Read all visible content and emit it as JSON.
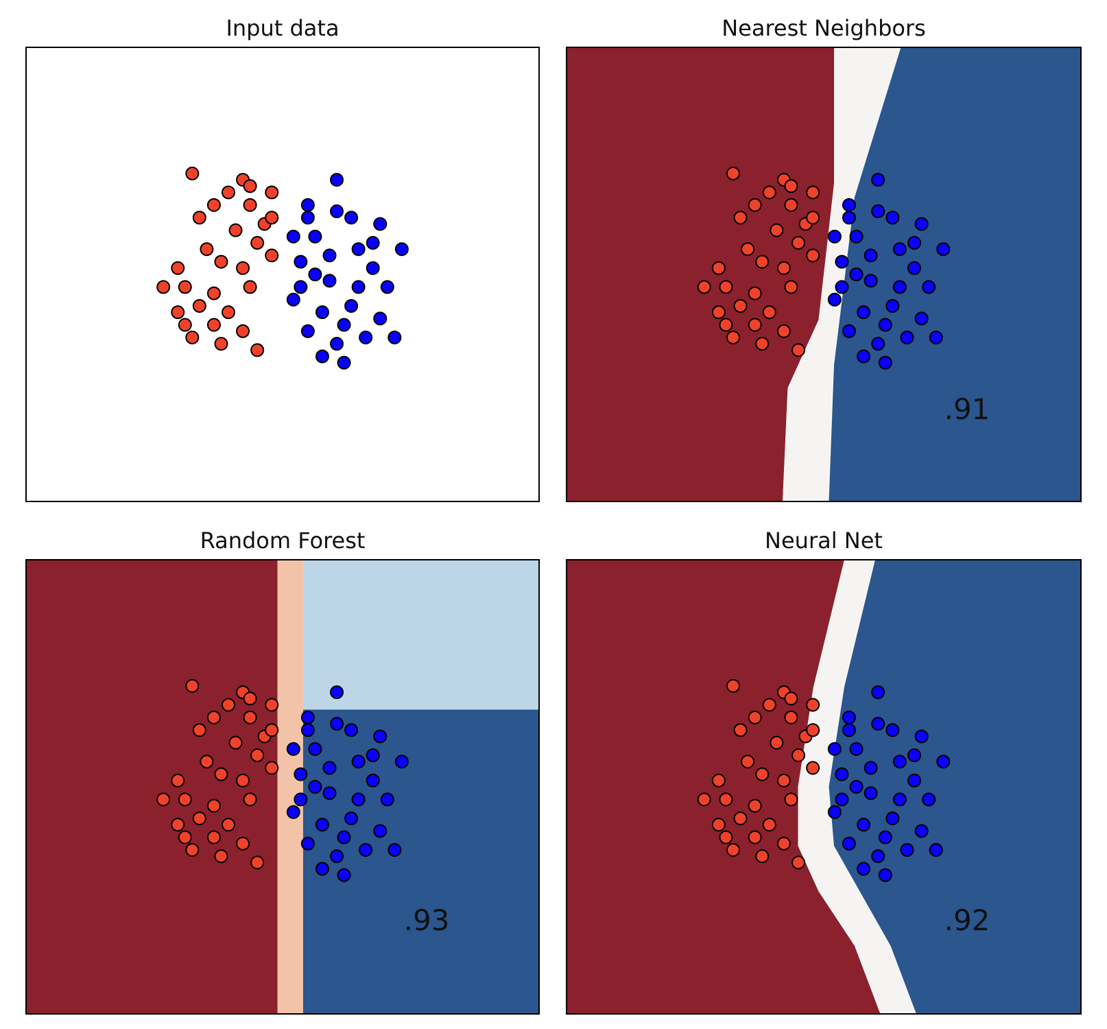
{
  "colors": {
    "class_a_point": "#f0422a",
    "class_b_point": "#0a00ff",
    "point_edge": "#000000",
    "region_scale": [
      "#8b212d",
      "#c9654f",
      "#f2c3a9",
      "#f6f4f2",
      "#bcd6e8",
      "#6299c5",
      "#2b568e"
    ]
  },
  "chart_data": [
    {
      "type": "scatter",
      "title": "Input data",
      "background": "none",
      "xlim": [
        -3.6,
        3.5
      ],
      "ylim": [
        -3.6,
        3.6
      ],
      "series": [],
      "score": ""
    },
    {
      "type": "scatter",
      "title": "Nearest Neighbors",
      "background": "decision-regions",
      "boundary": "knn",
      "xlim": [
        -3.6,
        3.5
      ],
      "ylim": [
        -3.6,
        3.6
      ],
      "series": [],
      "score": ".91"
    },
    {
      "type": "scatter",
      "title": "Random Forest",
      "background": "decision-regions",
      "boundary": "forest",
      "xlim": [
        -3.6,
        3.5
      ],
      "ylim": [
        -3.6,
        3.6
      ],
      "series": [],
      "score": ".93"
    },
    {
      "type": "scatter",
      "title": "Neural Net",
      "background": "decision-regions",
      "boundary": "mlp",
      "xlim": [
        -3.6,
        3.5
      ],
      "ylim": [
        -3.6,
        3.6
      ],
      "series": [],
      "score": ".92"
    }
  ],
  "points": {
    "class_a": [
      [
        -1.3,
        1.6
      ],
      [
        -0.6,
        1.5
      ],
      [
        -0.2,
        1.3
      ],
      [
        -0.8,
        1.3
      ],
      [
        -1.0,
        1.1
      ],
      [
        -0.5,
        1.1
      ],
      [
        -0.3,
        0.8
      ],
      [
        -1.2,
        0.9
      ],
      [
        -0.7,
        0.7
      ],
      [
        -0.4,
        0.5
      ],
      [
        -1.1,
        0.4
      ],
      [
        -0.9,
        0.2
      ],
      [
        -0.2,
        0.3
      ],
      [
        -1.5,
        0.1
      ],
      [
        -0.6,
        0.1
      ],
      [
        -1.4,
        -0.2
      ],
      [
        -1.0,
        -0.3
      ],
      [
        -0.5,
        -0.2
      ],
      [
        -1.7,
        -0.2
      ],
      [
        -1.2,
        -0.5
      ],
      [
        -0.8,
        -0.6
      ],
      [
        -1.5,
        -0.6
      ],
      [
        -1.0,
        -0.8
      ],
      [
        -0.6,
        -0.9
      ],
      [
        -1.3,
        -1.0
      ],
      [
        -0.9,
        -1.1
      ],
      [
        -0.4,
        -1.2
      ],
      [
        -1.4,
        -0.8
      ],
      [
        -0.2,
        0.9
      ],
      [
        -0.5,
        1.4
      ]
    ],
    "class_b": [
      [
        0.7,
        1.5
      ],
      [
        0.3,
        1.1
      ],
      [
        0.7,
        1.0
      ],
      [
        1.3,
        0.8
      ],
      [
        0.4,
        0.6
      ],
      [
        1.0,
        0.4
      ],
      [
        1.2,
        0.1
      ],
      [
        0.2,
        0.2
      ],
      [
        0.6,
        -0.1
      ],
      [
        1.4,
        -0.2
      ],
      [
        0.1,
        -0.4
      ],
      [
        0.5,
        -0.6
      ],
      [
        0.9,
        -0.5
      ],
      [
        1.3,
        -0.7
      ],
      [
        0.3,
        -0.9
      ],
      [
        0.7,
        -1.1
      ],
      [
        1.1,
        -1.0
      ],
      [
        0.5,
        -1.3
      ],
      [
        0.6,
        0.3
      ],
      [
        0.9,
        0.9
      ],
      [
        0.2,
        -0.2
      ],
      [
        1.6,
        0.4
      ],
      [
        0.8,
        -0.8
      ],
      [
        0.4,
        0.0
      ],
      [
        1.0,
        -0.2
      ],
      [
        0.3,
        0.9
      ],
      [
        1.5,
        -1.0
      ],
      [
        0.8,
        -1.4
      ],
      [
        0.1,
        0.6
      ],
      [
        1.2,
        0.5
      ]
    ]
  }
}
